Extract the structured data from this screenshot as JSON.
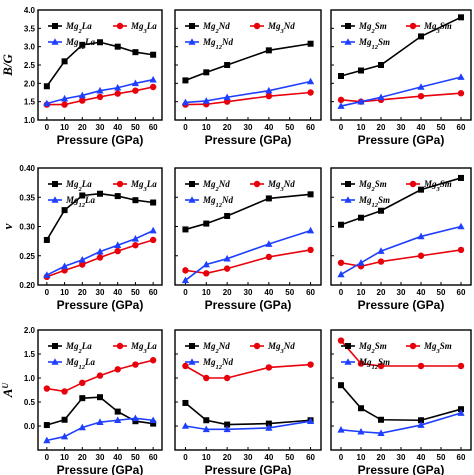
{
  "xlabel": "Pressure (GPa)",
  "row_ylabels": [
    "B/G",
    "ν",
    "A^U"
  ],
  "rows": [
    {
      "ylim": [
        1.0,
        4.0
      ],
      "yticks": [
        1.0,
        1.5,
        2.0,
        2.5,
        3.0,
        3.5,
        4.0
      ]
    },
    {
      "ylim": [
        0.2,
        0.4
      ],
      "yticks": [
        0.2,
        0.25,
        0.3,
        0.35,
        0.4
      ]
    },
    {
      "ylim": [
        -0.5,
        2.0
      ],
      "yticks": [
        0.0,
        0.5,
        1.0,
        1.5,
        2.0
      ]
    }
  ],
  "xticks": [
    0,
    10,
    20,
    30,
    40,
    50,
    60
  ],
  "colors": {
    "black": "#000000",
    "red": "#e8000b",
    "blue": "#1f3fff"
  },
  "chart_data": [
    {
      "type": "line",
      "row": 0,
      "col": 0,
      "x": [
        0,
        10,
        20,
        30,
        40,
        50,
        60
      ],
      "series": [
        {
          "name": "Mg2La",
          "color": "black",
          "marker": "square",
          "values": [
            1.92,
            2.6,
            3.05,
            3.12,
            3.0,
            2.85,
            2.78
          ]
        },
        {
          "name": "Mg3La",
          "color": "red",
          "marker": "circle",
          "values": [
            1.42,
            1.42,
            1.53,
            1.63,
            1.72,
            1.8,
            1.9
          ]
        },
        {
          "name": "Mg12La",
          "color": "blue",
          "marker": "triangle",
          "values": [
            1.45,
            1.58,
            1.67,
            1.8,
            1.88,
            2.0,
            2.1
          ]
        }
      ]
    },
    {
      "type": "line",
      "row": 0,
      "col": 1,
      "x": [
        0,
        10,
        20,
        40,
        60
      ],
      "series": [
        {
          "name": "Mg2Nd",
          "color": "black",
          "marker": "square",
          "values": [
            2.08,
            2.3,
            2.5,
            2.9,
            3.08
          ]
        },
        {
          "name": "Mg3Nd",
          "color": "red",
          "marker": "circle",
          "values": [
            1.42,
            1.43,
            1.5,
            1.65,
            1.75
          ]
        },
        {
          "name": "Mg12Nd",
          "color": "blue",
          "marker": "triangle",
          "values": [
            1.48,
            1.52,
            1.62,
            1.8,
            2.05
          ]
        }
      ]
    },
    {
      "type": "line",
      "row": 0,
      "col": 2,
      "x": [
        0,
        10,
        20,
        40,
        60
      ],
      "series": [
        {
          "name": "Mg2Sm",
          "color": "black",
          "marker": "square",
          "values": [
            2.2,
            2.35,
            2.5,
            3.28,
            3.8
          ]
        },
        {
          "name": "Mg3Sm",
          "color": "red",
          "marker": "circle",
          "values": [
            1.55,
            1.5,
            1.55,
            1.65,
            1.73
          ]
        },
        {
          "name": "Mg12Sm",
          "color": "blue",
          "marker": "triangle",
          "values": [
            1.38,
            1.5,
            1.62,
            1.9,
            2.17
          ]
        }
      ]
    },
    {
      "type": "line",
      "row": 1,
      "col": 0,
      "x": [
        0,
        10,
        20,
        30,
        40,
        50,
        60
      ],
      "series": [
        {
          "name": "Mg2La",
          "color": "black",
          "marker": "square",
          "values": [
            0.277,
            0.328,
            0.353,
            0.356,
            0.352,
            0.345,
            0.341
          ]
        },
        {
          "name": "Mg3La",
          "color": "red",
          "marker": "circle",
          "values": [
            0.214,
            0.225,
            0.235,
            0.247,
            0.258,
            0.268,
            0.277
          ]
        },
        {
          "name": "Mg12La",
          "color": "blue",
          "marker": "triangle",
          "values": [
            0.217,
            0.232,
            0.243,
            0.257,
            0.268,
            0.279,
            0.293
          ]
        }
      ]
    },
    {
      "type": "line",
      "row": 1,
      "col": 1,
      "x": [
        0,
        10,
        20,
        40,
        60
      ],
      "series": [
        {
          "name": "Mg2Nd",
          "color": "black",
          "marker": "square",
          "values": [
            0.295,
            0.305,
            0.318,
            0.348,
            0.355
          ]
        },
        {
          "name": "Mg3Nd",
          "color": "red",
          "marker": "circle",
          "values": [
            0.225,
            0.22,
            0.228,
            0.248,
            0.26
          ]
        },
        {
          "name": "Mg12Nd",
          "color": "blue",
          "marker": "triangle",
          "values": [
            0.208,
            0.235,
            0.245,
            0.27,
            0.293
          ]
        }
      ]
    },
    {
      "type": "line",
      "row": 1,
      "col": 2,
      "x": [
        0,
        10,
        20,
        40,
        60
      ],
      "series": [
        {
          "name": "Mg2Sm",
          "color": "black",
          "marker": "square",
          "values": [
            0.303,
            0.315,
            0.327,
            0.363,
            0.383
          ]
        },
        {
          "name": "Mg3Sm",
          "color": "red",
          "marker": "circle",
          "values": [
            0.238,
            0.232,
            0.24,
            0.25,
            0.26
          ]
        },
        {
          "name": "Mg12Sm",
          "color": "blue",
          "marker": "triangle",
          "values": [
            0.218,
            0.238,
            0.258,
            0.283,
            0.3
          ]
        }
      ]
    },
    {
      "type": "line",
      "row": 2,
      "col": 0,
      "x": [
        0,
        10,
        20,
        30,
        40,
        50,
        60
      ],
      "series": [
        {
          "name": "Mg2La",
          "color": "black",
          "marker": "square",
          "values": [
            0.02,
            0.13,
            0.58,
            0.6,
            0.3,
            0.1,
            0.05
          ]
        },
        {
          "name": "Mg3La",
          "color": "red",
          "marker": "circle",
          "values": [
            0.78,
            0.72,
            0.9,
            1.05,
            1.18,
            1.28,
            1.37
          ]
        },
        {
          "name": "Mg12La",
          "color": "blue",
          "marker": "triangle",
          "values": [
            -0.3,
            -0.22,
            -0.03,
            0.08,
            0.12,
            0.16,
            0.12
          ]
        }
      ]
    },
    {
      "type": "line",
      "row": 2,
      "col": 1,
      "x": [
        0,
        10,
        20,
        40,
        60
      ],
      "series": [
        {
          "name": "Mg2Nd",
          "color": "black",
          "marker": "square",
          "values": [
            0.48,
            0.12,
            0.03,
            0.05,
            0.12
          ]
        },
        {
          "name": "Mg3Nd",
          "color": "red",
          "marker": "circle",
          "values": [
            1.25,
            1.0,
            1.0,
            1.22,
            1.28
          ]
        },
        {
          "name": "Mg12Nd",
          "color": "blue",
          "marker": "triangle",
          "values": [
            0.0,
            -0.07,
            -0.07,
            -0.04,
            0.1
          ]
        }
      ]
    },
    {
      "type": "line",
      "row": 2,
      "col": 2,
      "x": [
        0,
        10,
        20,
        40,
        60
      ],
      "series": [
        {
          "name": "Mg2Sm",
          "color": "black",
          "marker": "square",
          "values": [
            0.85,
            0.37,
            0.13,
            0.12,
            0.35
          ]
        },
        {
          "name": "Mg3Sm",
          "color": "red",
          "marker": "circle",
          "values": [
            1.78,
            1.3,
            1.25,
            1.25,
            1.25
          ]
        },
        {
          "name": "Mg12Sm",
          "color": "blue",
          "marker": "triangle",
          "values": [
            -0.08,
            -0.12,
            -0.15,
            0.02,
            0.27
          ]
        }
      ]
    }
  ]
}
